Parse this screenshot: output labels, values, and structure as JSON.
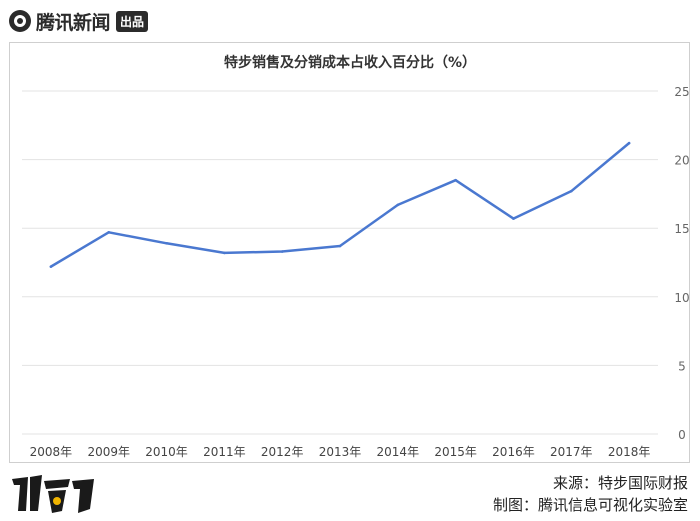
{
  "brand": {
    "name": "腾讯新闻",
    "tag": "出品",
    "footer_logo_text": "财看见"
  },
  "footer": {
    "source": "来源：特步国际财报",
    "maker": "制图：腾讯信息可视化实验室"
  },
  "colors": {
    "line": "#4a78d0",
    "grid": "#e3e3e3",
    "axis_text": "#666666"
  },
  "chart_data": {
    "type": "line",
    "title": "特步销售及分销成本占收入百分比（%）",
    "xlabel": "",
    "ylabel": "",
    "categories": [
      "2008年",
      "2009年",
      "2010年",
      "2011年",
      "2012年",
      "2013年",
      "2014年",
      "2015年",
      "2016年",
      "2017年",
      "2018年"
    ],
    "series": [
      {
        "values": [
          12.2,
          14.7,
          13.9,
          13.2,
          13.3,
          13.7,
          16.7,
          18.5,
          15.7,
          17.7,
          21.2
        ]
      }
    ],
    "ylim": [
      0,
      25
    ],
    "yticks": [
      0,
      5,
      10,
      15,
      20,
      25
    ],
    "grid": true,
    "y_axis_side": "right",
    "legend": "none"
  }
}
